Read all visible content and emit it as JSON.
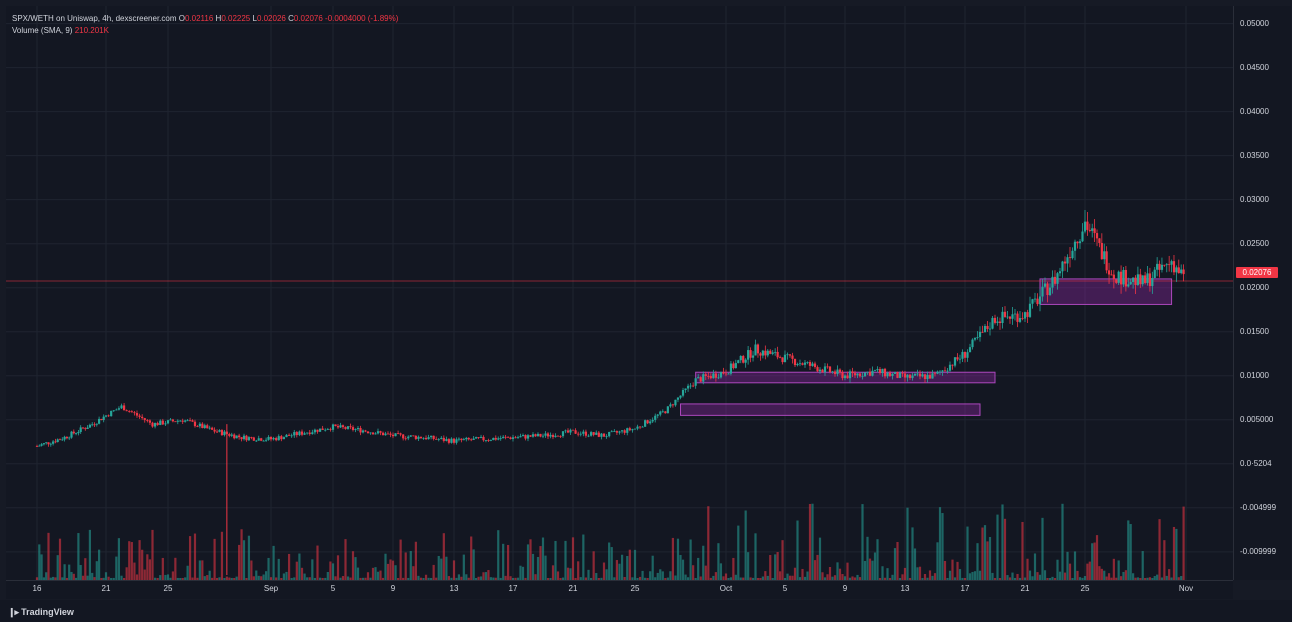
{
  "legend": {
    "pair_line": "SPX/WETH on Uniswap, 4h, dexscreener.com",
    "open_key": "O",
    "open_val": "0.02116",
    "high_key": "H",
    "high_val": "0.02225",
    "low_key": "L",
    "low_val": "0.02026",
    "close_key": "C",
    "close_val": "0.02076",
    "change_val": "-0.0004000 (-1.89%)",
    "volume_key": "Volume (SMA, 9)",
    "volume_val": "210.201K"
  },
  "last_price_tag": "0.02076",
  "footer": {
    "brand": "TradingView",
    "logo_icon": "tradingview-logo-icon"
  },
  "colors": {
    "up": "#26a69a",
    "down": "#f23645",
    "zone": "#9c27b0",
    "background": "#131722",
    "grid": "#1f2430"
  },
  "chart_data": {
    "type": "candlestick",
    "title": "SPX/WETH on Uniswap, 4h, dexscreener.com",
    "y_ticks": [
      "0.05000",
      "0.04500",
      "0.04000",
      "0.03500",
      "0.03000",
      "0.02500",
      "0.02000",
      "0.01500",
      "0.01000",
      "0.005000",
      "0.0·5204",
      "-0.004999",
      "-0.009999"
    ],
    "y_tick_values": [
      0.05,
      0.045,
      0.04,
      0.035,
      0.03,
      0.025,
      0.02,
      0.015,
      0.01,
      0.005,
      0,
      -0.005,
      -0.01
    ],
    "ylim": [
      -0.0132,
      0.052
    ],
    "x_ticks": [
      "16",
      "21",
      "25",
      "Sep",
      "5",
      "9",
      "13",
      "17",
      "21",
      "25",
      "Oct",
      "5",
      "9",
      "13",
      "17",
      "21",
      "25",
      "Nov"
    ],
    "x_tick_dates": [
      "Aug 16",
      "Aug 21",
      "Aug 25",
      "Sep 1",
      "Sep 5",
      "Sep 9",
      "Sep 13",
      "Sep 17",
      "Sep 21",
      "Sep 25",
      "Oct 1",
      "Oct 5",
      "Oct 9",
      "Oct 13",
      "Oct 17",
      "Oct 21",
      "Oct 25",
      "Nov 1"
    ],
    "price_series_daily": {
      "dates": [
        "Aug 16",
        "Aug 18",
        "Aug 20",
        "Aug 22",
        "Aug 24",
        "Aug 26",
        "Aug 28",
        "Aug 30",
        "Sep 1",
        "Sep 3",
        "Sep 5",
        "Sep 7",
        "Sep 9",
        "Sep 11",
        "Sep 13",
        "Sep 15",
        "Sep 17",
        "Sep 19",
        "Sep 21",
        "Sep 23",
        "Sep 25",
        "Sep 27",
        "Sep 29",
        "Oct 1",
        "Oct 3",
        "Oct 5",
        "Oct 7",
        "Oct 9",
        "Oct 11",
        "Oct 13",
        "Oct 15",
        "Oct 17",
        "Oct 19",
        "Oct 21",
        "Oct 23",
        "Oct 25",
        "Oct 27",
        "Oct 29",
        "Oct 31",
        "Nov 1"
      ],
      "close": [
        0.002,
        0.003,
        0.0045,
        0.0065,
        0.0045,
        0.005,
        0.0038,
        0.003,
        0.0028,
        0.0035,
        0.0042,
        0.0038,
        0.0032,
        0.003,
        0.0026,
        0.0028,
        0.003,
        0.0032,
        0.0036,
        0.0032,
        0.004,
        0.006,
        0.0095,
        0.0105,
        0.013,
        0.012,
        0.011,
        0.01,
        0.0105,
        0.0098,
        0.01,
        0.0125,
        0.0165,
        0.017,
        0.021,
        0.0275,
        0.0215,
        0.0205,
        0.023,
        0.0208
      ]
    },
    "volume_sma_9": "210.201K",
    "last_price": 0.02076,
    "horizontal_line": 0.02076,
    "zones": [
      {
        "label": "",
        "from": "Sep 28",
        "to": "Oct 18",
        "low": 0.0055,
        "high": 0.0068
      },
      {
        "label": "",
        "from": "Sep 29",
        "to": "Oct 19",
        "low": 0.0092,
        "high": 0.0104
      },
      {
        "label": "",
        "from": "Oct 22",
        "to": "Oct 31",
        "low": 0.0181,
        "high": 0.021
      }
    ]
  }
}
